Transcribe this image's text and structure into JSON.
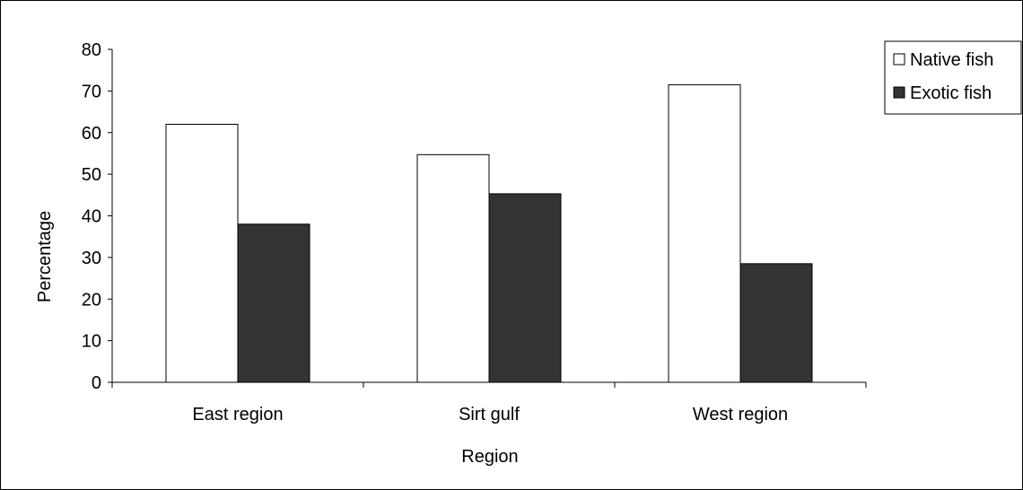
{
  "chart_data": {
    "type": "bar",
    "title": "",
    "xlabel": "Region",
    "ylabel": "Percentage",
    "categories": [
      "East region",
      "Sirt gulf",
      "West region"
    ],
    "series": [
      {
        "name": "Native fish",
        "values": [
          62,
          54.7,
          71.5
        ],
        "color": "#ffffff"
      },
      {
        "name": "Exotic fish",
        "values": [
          38,
          45.3,
          28.5
        ],
        "color": "#333333"
      }
    ],
    "ylim": [
      0,
      80
    ],
    "yticks": [
      0,
      10,
      20,
      30,
      40,
      50,
      60,
      70,
      80
    ],
    "grid": false,
    "legend": "top-right"
  }
}
